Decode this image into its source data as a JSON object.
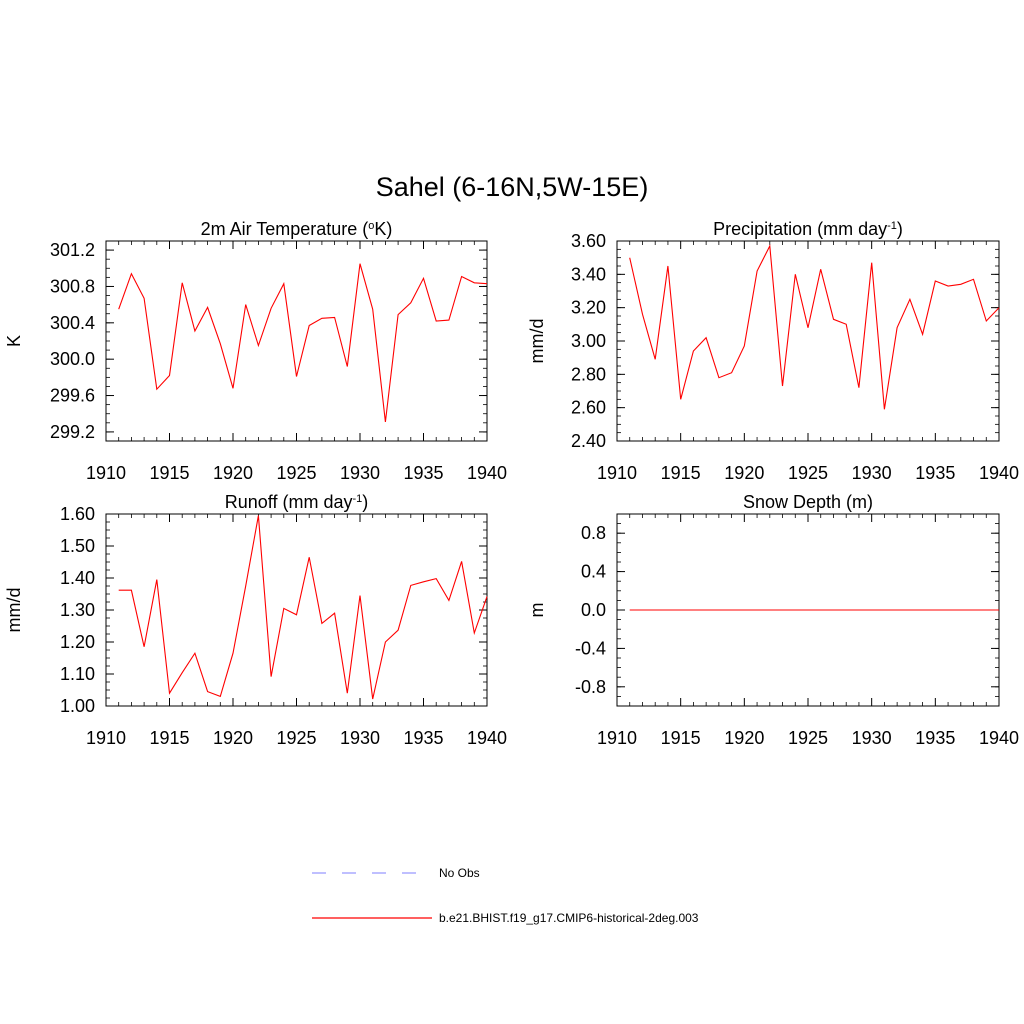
{
  "main_title": "Sahel (6-16N,5W-15E)",
  "colors": {
    "model": "#ff0000",
    "obs": "#9999ff",
    "axis": "#000000"
  },
  "legend": {
    "items": [
      {
        "label": "No Obs",
        "style": "dashed"
      },
      {
        "label": "b.e21.BHIST.f19_g17.CMIP6-historical-2deg.003",
        "style": "solid"
      }
    ]
  },
  "chart_data": [
    {
      "type": "line",
      "title": "2m Air Temperature (",
      "title_sup": "o",
      "title_after_sup": "K)",
      "title_post": ")",
      "ylabel": "K",
      "xlim": [
        1910,
        1940
      ],
      "ylim": [
        299.1,
        301.3
      ],
      "x_ticks": [
        1910,
        1915,
        1920,
        1925,
        1930,
        1935,
        1940
      ],
      "x_tick_labels": [
        "1910",
        "1915",
        "1920",
        "1925",
        "1930",
        "1935",
        "1940"
      ],
      "y_ticks": [
        299.2,
        299.6,
        300.0,
        300.4,
        300.8,
        301.2
      ],
      "y_tick_labels": [
        "299.2",
        "299.6",
        "300.0",
        "300.4",
        "300.8",
        "301.2"
      ],
      "x": [
        1911,
        1912,
        1913,
        1914,
        1915,
        1916,
        1917,
        1918,
        1919,
        1920,
        1921,
        1922,
        1923,
        1924,
        1925,
        1926,
        1927,
        1928,
        1929,
        1930,
        1931,
        1932,
        1933,
        1934,
        1935,
        1936,
        1937,
        1938,
        1939,
        1940
      ],
      "values": [
        300.55,
        300.94,
        300.67,
        299.67,
        299.82,
        300.84,
        300.31,
        300.57,
        300.17,
        299.68,
        300.6,
        300.15,
        300.56,
        300.83,
        299.81,
        300.37,
        300.45,
        300.46,
        299.92,
        301.05,
        300.55,
        299.31,
        300.49,
        300.62,
        300.89,
        300.42,
        300.43,
        300.91,
        300.84,
        300.83
      ]
    },
    {
      "type": "line",
      "title": "Precipitation (mm day",
      "title_sup": "-1",
      "title_after_sup": ")",
      "ylabel": "mm/d",
      "xlim": [
        1910,
        1940
      ],
      "ylim": [
        2.4,
        3.6
      ],
      "x_ticks": [
        1910,
        1915,
        1920,
        1925,
        1930,
        1935,
        1940
      ],
      "x_tick_labels": [
        "1910",
        "1915",
        "1920",
        "1925",
        "1930",
        "1935",
        "1940"
      ],
      "y_ticks": [
        2.4,
        2.6,
        2.8,
        3.0,
        3.2,
        3.4,
        3.6
      ],
      "y_tick_labels": [
        "2.40",
        "2.60",
        "2.80",
        "3.00",
        "3.20",
        "3.40",
        "3.60"
      ],
      "x": [
        1911,
        1912,
        1913,
        1914,
        1915,
        1916,
        1917,
        1918,
        1919,
        1920,
        1921,
        1922,
        1923,
        1924,
        1925,
        1926,
        1927,
        1928,
        1929,
        1930,
        1931,
        1932,
        1933,
        1934,
        1935,
        1936,
        1937,
        1938,
        1939,
        1940
      ],
      "values": [
        3.5,
        3.16,
        2.89,
        3.45,
        2.65,
        2.94,
        3.02,
        2.78,
        2.81,
        2.97,
        3.42,
        3.57,
        2.73,
        3.4,
        3.08,
        3.43,
        3.13,
        3.1,
        2.72,
        3.47,
        2.59,
        3.08,
        3.25,
        3.04,
        3.36,
        3.33,
        3.34,
        3.37,
        3.12,
        3.2
      ]
    },
    {
      "type": "line",
      "title": "Runoff (mm day",
      "title_sup": "-1",
      "title_after_sup": ")",
      "ylabel": "mm/d",
      "xlim": [
        1910,
        1940
      ],
      "ylim": [
        1.0,
        1.6
      ],
      "x_ticks": [
        1910,
        1915,
        1920,
        1925,
        1930,
        1935,
        1940
      ],
      "x_tick_labels": [
        "1910",
        "1915",
        "1920",
        "1925",
        "1930",
        "1935",
        "1940"
      ],
      "y_ticks": [
        1.0,
        1.1,
        1.2,
        1.3,
        1.4,
        1.5,
        1.6
      ],
      "y_tick_labels": [
        "1.00",
        "1.10",
        "1.20",
        "1.30",
        "1.40",
        "1.50",
        "1.60"
      ],
      "x": [
        1911,
        1912,
        1913,
        1914,
        1915,
        1916,
        1917,
        1918,
        1919,
        1920,
        1921,
        1922,
        1923,
        1924,
        1925,
        1926,
        1927,
        1928,
        1929,
        1930,
        1931,
        1932,
        1933,
        1934,
        1935,
        1936,
        1937,
        1938,
        1939,
        1940
      ],
      "values": [
        1.362,
        1.362,
        1.185,
        1.395,
        1.04,
        1.104,
        1.165,
        1.045,
        1.03,
        1.165,
        1.375,
        1.595,
        1.092,
        1.305,
        1.285,
        1.465,
        1.258,
        1.29,
        1.04,
        1.345,
        1.022,
        1.2,
        1.237,
        1.377,
        1.388,
        1.398,
        1.33,
        1.452,
        1.228,
        1.342
      ]
    },
    {
      "type": "line",
      "title": "Snow Depth (m)",
      "title_sup": "",
      "title_after_sup": "",
      "ylabel": "m",
      "xlim": [
        1910,
        1940
      ],
      "ylim": [
        -1.0,
        1.0
      ],
      "x_ticks": [
        1910,
        1915,
        1920,
        1925,
        1930,
        1935,
        1940
      ],
      "x_tick_labels": [
        "1910",
        "1915",
        "1920",
        "1925",
        "1930",
        "1935",
        "1940"
      ],
      "y_ticks": [
        -0.8,
        -0.4,
        0.0,
        0.4,
        0.8
      ],
      "y_tick_labels": [
        "-0.8",
        "-0.4",
        "0.0",
        "0.4",
        "0.8"
      ],
      "x": [
        1911,
        1912,
        1913,
        1914,
        1915,
        1916,
        1917,
        1918,
        1919,
        1920,
        1921,
        1922,
        1923,
        1924,
        1925,
        1926,
        1927,
        1928,
        1929,
        1930,
        1931,
        1932,
        1933,
        1934,
        1935,
        1936,
        1937,
        1938,
        1939,
        1940
      ],
      "values": [
        0,
        0,
        0,
        0,
        0,
        0,
        0,
        0,
        0,
        0,
        0,
        0,
        0,
        0,
        0,
        0,
        0,
        0,
        0,
        0,
        0,
        0,
        0,
        0,
        0,
        0,
        0,
        0,
        0,
        0
      ]
    }
  ]
}
